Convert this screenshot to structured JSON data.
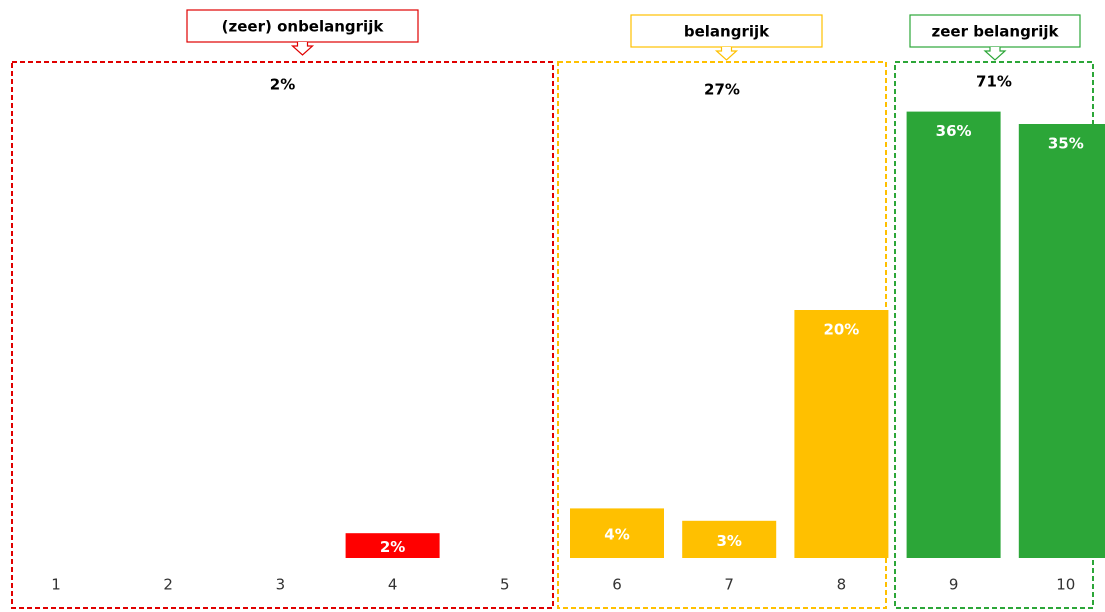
{
  "chart_data": {
    "type": "bar",
    "categories": [
      "1",
      "2",
      "3",
      "4",
      "5",
      "6",
      "7",
      "8",
      "9",
      "10"
    ],
    "values": [
      0,
      0,
      0,
      2,
      0,
      4,
      3,
      20,
      36,
      35
    ],
    "value_labels": [
      null,
      null,
      null,
      "2%",
      null,
      "4%",
      "3%",
      "20%",
      "36%",
      "35%"
    ],
    "colors": [
      "#ff0000",
      "#ff0000",
      "#ff0000",
      "#ff0000",
      "#ff0000",
      "#ffc000",
      "#ffc000",
      "#ffc000",
      "#2ca638",
      "#2ca638"
    ],
    "ylim": [
      0,
      40
    ],
    "groups": [
      {
        "label": "(zeer) onbelangrijk",
        "total": 2,
        "total_label": "2%",
        "color": "#e00000"
      },
      {
        "label": "belangrijk",
        "total": 27,
        "total_label": "27%",
        "color": "#ffc000"
      },
      {
        "label": "zeer belangrijk",
        "total": 71,
        "total_label": "71%",
        "color": "#2ca638"
      }
    ]
  }
}
